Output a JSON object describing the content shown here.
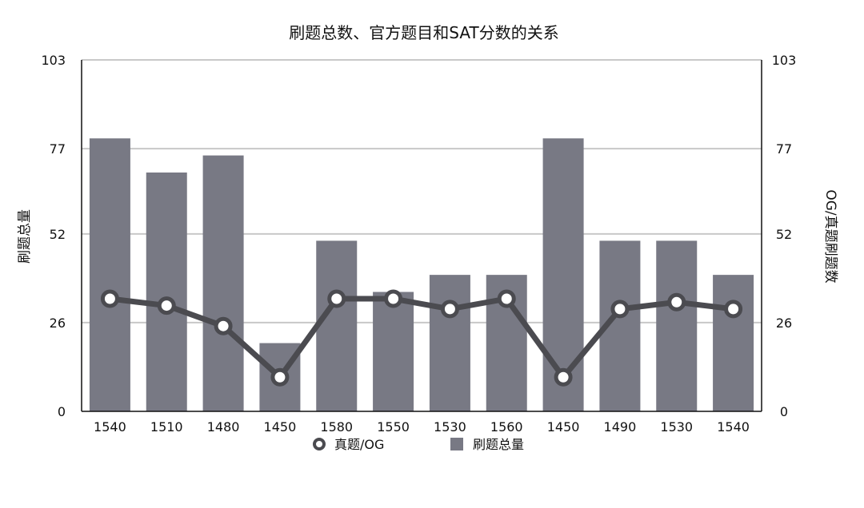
{
  "chart_data": {
    "type": "bar",
    "title": "刷题总数、官方题目和SAT分数的关系",
    "categories": [
      "1540",
      "1510",
      "1480",
      "1450",
      "1580",
      "1550",
      "1530",
      "1560",
      "1450",
      "1490",
      "1530",
      "1540"
    ],
    "y_left_label": "刷题总量",
    "y_right_label": "OG/真题刷题数",
    "y_ticks": [
      "0",
      "26",
      "52",
      "77",
      "103"
    ],
    "ylim": [
      0,
      103
    ],
    "grid": true,
    "legend_placement": "bottom",
    "series": [
      {
        "name": "刷题总量",
        "type": "bar",
        "axis": "left",
        "color": "#787984",
        "values": [
          80,
          70,
          75,
          20,
          50,
          35,
          40,
          40,
          80,
          50,
          50,
          40
        ]
      },
      {
        "name": "真题/OG",
        "type": "line",
        "axis": "right",
        "color": "#4b4b50",
        "values": [
          33,
          31,
          25,
          10,
          33,
          33,
          30,
          33,
          10,
          30,
          32,
          30
        ]
      }
    ]
  }
}
